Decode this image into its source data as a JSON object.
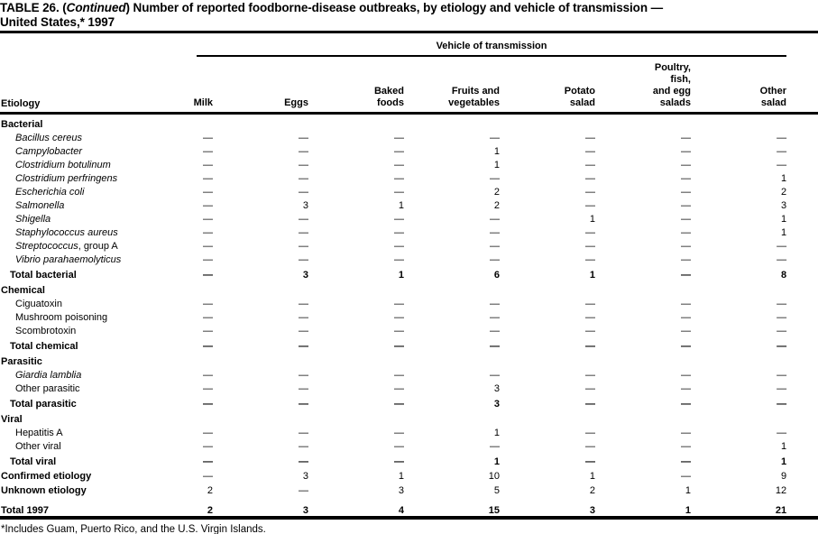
{
  "title": {
    "part1": "TABLE 26. (",
    "part2_italic": "Continued",
    "part3": ") Number of reported foodborne-disease outbreaks, by etiology and vehicle of transmission —",
    "line2": "United States,* 1997"
  },
  "table": {
    "spanner_label": "Vehicle of transmission",
    "etiology_label": "Etiology",
    "columns": [
      {
        "label": "Milk"
      },
      {
        "label": "Eggs"
      },
      {
        "label": "Baked\nfoods"
      },
      {
        "label": "Fruits and\nvegetables"
      },
      {
        "label": "Potato\nsalad"
      },
      {
        "label": "Poultry,\nfish,\nand egg\nsalads"
      },
      {
        "label": "Other\nsalad"
      }
    ],
    "sections": [
      {
        "header": "Bacterial",
        "rows": [
          {
            "label": "Bacillus cereus",
            "style": "italic",
            "values": [
              "—",
              "—",
              "—",
              "—",
              "—",
              "—",
              "—"
            ]
          },
          {
            "label": "Campylobacter",
            "style": "italic",
            "values": [
              "—",
              "—",
              "—",
              "1",
              "—",
              "—",
              "—"
            ]
          },
          {
            "label": "Clostridium botulinum",
            "style": "italic",
            "values": [
              "—",
              "—",
              "—",
              "1",
              "—",
              "—",
              "—"
            ]
          },
          {
            "label": "Clostridium perfringens",
            "style": "italic",
            "values": [
              "—",
              "—",
              "—",
              "—",
              "—",
              "—",
              "1"
            ]
          },
          {
            "label": "Escherichia coli",
            "style": "italic",
            "values": [
              "—",
              "—",
              "—",
              "2",
              "—",
              "—",
              "2"
            ]
          },
          {
            "label": "Salmonella",
            "style": "italic",
            "values": [
              "—",
              "3",
              "1",
              "2",
              "—",
              "—",
              "3"
            ]
          },
          {
            "label": "Shigella",
            "style": "italic",
            "values": [
              "—",
              "—",
              "—",
              "—",
              "1",
              "—",
              "1"
            ]
          },
          {
            "label": "Staphylococcus aureus",
            "style": "italic",
            "values": [
              "—",
              "—",
              "—",
              "—",
              "—",
              "—",
              "1"
            ]
          },
          {
            "label": "Streptococcus",
            "label_suffix": ", group A",
            "style": "italic",
            "values": [
              "—",
              "—",
              "—",
              "—",
              "—",
              "—",
              "—"
            ]
          },
          {
            "label": "Vibrio parahaemolyticus",
            "style": "italic",
            "values": [
              "—",
              "—",
              "—",
              "—",
              "—",
              "—",
              "—"
            ]
          }
        ],
        "total": {
          "label": "Total bacterial",
          "values": [
            "—",
            "3",
            "1",
            "6",
            "1",
            "—",
            "8"
          ]
        }
      },
      {
        "header": "Chemical",
        "rows": [
          {
            "label": "Ciguatoxin",
            "style": "plain",
            "values": [
              "—",
              "—",
              "—",
              "—",
              "—",
              "—",
              "—"
            ]
          },
          {
            "label": "Mushroom poisoning",
            "style": "plain",
            "values": [
              "—",
              "—",
              "—",
              "—",
              "—",
              "—",
              "—"
            ]
          },
          {
            "label": "Scombrotoxin",
            "style": "plain",
            "values": [
              "—",
              "—",
              "—",
              "—",
              "—",
              "—",
              "—"
            ]
          }
        ],
        "total": {
          "label": "Total chemical",
          "values": [
            "—",
            "—",
            "—",
            "—",
            "—",
            "—",
            "—"
          ]
        }
      },
      {
        "header": "Parasitic",
        "rows": [
          {
            "label": "Giardia lamblia",
            "style": "italic",
            "values": [
              "—",
              "—",
              "—",
              "—",
              "—",
              "—",
              "—"
            ]
          },
          {
            "label": "Other parasitic",
            "style": "plain",
            "values": [
              "—",
              "—",
              "—",
              "3",
              "—",
              "—",
              "—"
            ]
          }
        ],
        "total": {
          "label": "Total parasitic",
          "values": [
            "—",
            "—",
            "—",
            "3",
            "—",
            "—",
            "—"
          ]
        }
      },
      {
        "header": "Viral",
        "rows": [
          {
            "label": "Hepatitis A",
            "style": "plain",
            "values": [
              "—",
              "—",
              "—",
              "1",
              "—",
              "—",
              "—"
            ]
          },
          {
            "label": "Other viral",
            "style": "plain",
            "values": [
              "—",
              "—",
              "—",
              "—",
              "—",
              "—",
              "1"
            ]
          }
        ],
        "total": {
          "label": "Total viral",
          "values": [
            "—",
            "—",
            "—",
            "1",
            "—",
            "—",
            "1"
          ]
        }
      }
    ],
    "summary_rows": [
      {
        "label": "Confirmed etiology",
        "values": [
          "—",
          "3",
          "1",
          "10",
          "1",
          "—",
          "9"
        ]
      },
      {
        "label": "Unknown etiology",
        "values": [
          "2",
          "—",
          "3",
          "5",
          "2",
          "1",
          "12"
        ]
      }
    ],
    "grand_total": {
      "label": "Total 1997",
      "values": [
        "2",
        "3",
        "4",
        "15",
        "3",
        "1",
        "21"
      ]
    }
  },
  "footnote": "*Includes Guam, Puerto Rico, and the U.S. Virgin Islands."
}
